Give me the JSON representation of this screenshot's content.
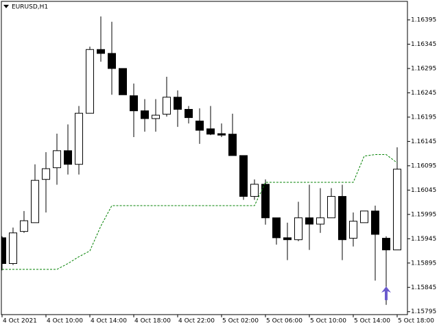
{
  "chart_data": {
    "type": "candlestick",
    "title": "EURUSD,H1",
    "categories": [
      "4 Oct 2021",
      null,
      null,
      null,
      "4 Oct 10:00",
      null,
      null,
      null,
      "4 Oct 14:00",
      null,
      null,
      null,
      "4 Oct 18:00",
      null,
      null,
      null,
      "4 Oct 22:00",
      null,
      null,
      null,
      "5 Oct 02:00",
      null,
      null,
      null,
      "5 Oct 06:00",
      null,
      null,
      null,
      "5 Oct 10:00",
      null,
      null,
      null,
      "5 Oct 14:00",
      null,
      null,
      null,
      "5 Oct 18:00"
    ],
    "open": [
      1.15947,
      1.15894,
      1.1596,
      1.15978,
      1.16067,
      1.16091,
      1.16126,
      1.16098,
      1.16203,
      1.16334,
      1.16326,
      1.16295,
      1.16239,
      1.16208,
      1.16192,
      1.16201,
      1.16236,
      1.16211,
      1.16187,
      1.16171,
      1.16161,
      1.1616,
      1.16116,
      1.16032,
      1.16057,
      1.15988,
      1.15947,
      1.15943,
      1.15988,
      1.15975,
      1.15988,
      1.16032,
      1.15946,
      1.15978,
      1.16002,
      1.15946,
      1.15922
    ],
    "high": [
      1.1595,
      1.15968,
      1.16002,
      1.16098,
      1.16123,
      1.16161,
      1.1618,
      1.16218,
      1.1634,
      1.16402,
      1.16391,
      1.16295,
      1.16264,
      1.16232,
      1.16232,
      1.16278,
      1.1625,
      1.16218,
      1.16213,
      1.16218,
      1.16182,
      1.16202,
      1.16116,
      1.16067,
      1.16067,
      1.15988,
      1.15978,
      1.16021,
      1.16056,
      1.16049,
      1.16049,
      1.16056,
      1.15999,
      1.16002,
      1.16013,
      1.1595,
      1.16133
    ],
    "low": [
      1.1588,
      1.15891,
      1.15957,
      1.15978,
      1.15999,
      1.16056,
      1.16077,
      1.16077,
      1.16203,
      1.16309,
      1.16241,
      1.16241,
      1.16154,
      1.16165,
      1.16165,
      1.16196,
      1.16175,
      1.16182,
      1.1614,
      1.16158,
      1.16154,
      1.16116,
      1.16025,
      1.16025,
      1.15974,
      1.15933,
      1.15901,
      1.1594,
      1.15922,
      1.15957,
      1.15988,
      1.15901,
      1.15929,
      1.15978,
      1.15859,
      1.15809,
      1.15922
    ],
    "close": [
      1.15894,
      1.15957,
      1.15982,
      1.16065,
      1.16089,
      1.16126,
      1.16098,
      1.16203,
      1.16334,
      1.16326,
      1.16295,
      1.16241,
      1.16208,
      1.16192,
      1.16199,
      1.16236,
      1.16211,
      1.16194,
      1.16168,
      1.1616,
      1.16158,
      1.16116,
      1.16032,
      1.16057,
      1.15988,
      1.15947,
      1.15943,
      1.15988,
      1.15975,
      1.15988,
      1.16032,
      1.15943,
      1.15981,
      1.16002,
      1.15954,
      1.15922,
      1.16088
    ],
    "up_color": "#ffffff",
    "down_color": "#000000",
    "line": {
      "color": "#008000",
      "values": [
        1.15882,
        1.15882,
        1.15882,
        1.15882,
        1.15882,
        1.15882,
        1.15894,
        1.15908,
        1.1592,
        1.15971,
        1.16013,
        1.16013,
        1.16013,
        1.16013,
        1.16013,
        1.16013,
        1.16013,
        1.16013,
        1.16013,
        1.16013,
        1.16013,
        1.16013,
        1.16013,
        1.16013,
        1.16061,
        1.16061,
        1.16061,
        1.16061,
        1.16061,
        1.16061,
        1.16061,
        1.16061,
        1.16061,
        1.16115,
        1.16118,
        1.16118,
        1.16101
      ]
    },
    "markers": {
      "color": "#6a5acd",
      "values": [
        null,
        null,
        null,
        null,
        null,
        null,
        null,
        null,
        null,
        null,
        null,
        null,
        null,
        null,
        null,
        null,
        null,
        null,
        null,
        null,
        null,
        null,
        null,
        null,
        null,
        null,
        null,
        null,
        null,
        null,
        null,
        null,
        null,
        null,
        null,
        1.15847,
        null
      ]
    },
    "ylim": [
      1.15789,
      1.16433
    ],
    "yticks": [
      1.16395,
      1.16345,
      1.16295,
      1.16245,
      1.16195,
      1.16145,
      1.16095,
      1.16045,
      1.15995,
      1.15945,
      1.15895,
      1.15845,
      1.15795
    ]
  }
}
